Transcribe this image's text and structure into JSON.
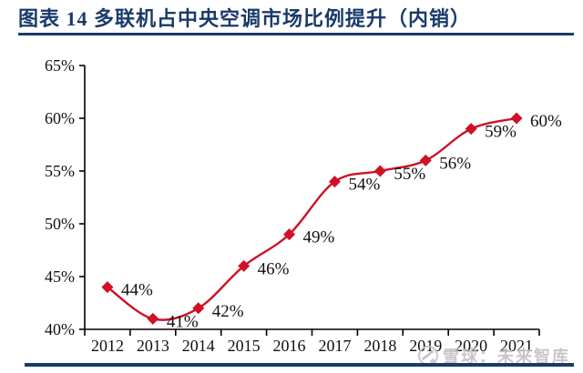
{
  "header": {
    "figure_label": "图表 14",
    "title_full": "图表 14  多联机占中央空调市场比例提升（内销）"
  },
  "colors": {
    "accent_navy": "#1a3a6b",
    "series_red": "#ce1126",
    "axis_black": "#000000",
    "label_black": "#111111",
    "watermark_gray": "#c3c3c6"
  },
  "chart_data": {
    "type": "line",
    "title": "多联机占中央空调市场比例提升（内销）",
    "categories": [
      "2012",
      "2013",
      "2014",
      "2015",
      "2016",
      "2017",
      "2018",
      "2019",
      "2020",
      "2021"
    ],
    "values": [
      44,
      41,
      42,
      46,
      49,
      54,
      55,
      56,
      59,
      60
    ],
    "point_labels": [
      "44%",
      "41%",
      "42%",
      "46%",
      "49%",
      "54%",
      "55%",
      "56%",
      "59%",
      "60%"
    ],
    "xlabel": "",
    "ylabel": "",
    "ylim": [
      40,
      65
    ],
    "ytick_step": 5,
    "ytick_labels": [
      "40%",
      "45%",
      "50%",
      "55%",
      "60%",
      "65%"
    ],
    "grid": false,
    "legend": "none",
    "marker": "diamond",
    "unit": "%"
  },
  "watermark": {
    "source_label": "雪球：未来智库",
    "icon": "snowball-logo"
  }
}
